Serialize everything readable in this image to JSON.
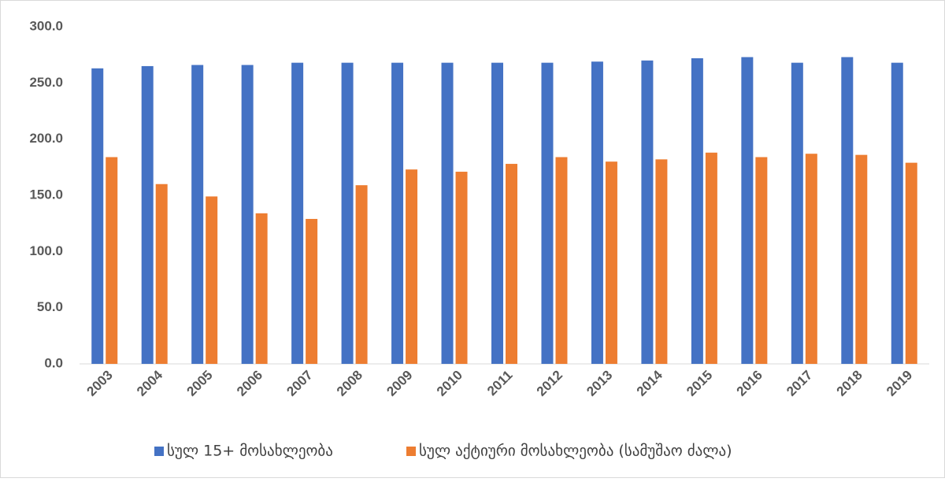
{
  "chart_data": {
    "type": "bar",
    "categories": [
      "2003",
      "2004",
      "2005",
      "2006",
      "2007",
      "2008",
      "2009",
      "2010",
      "2011",
      "2012",
      "2013",
      "2014",
      "2015",
      "2016",
      "2017",
      "2018",
      "2019"
    ],
    "series": [
      {
        "name": "სულ 15+ მოსახლეობა",
        "color": "#4472c4",
        "values": [
          263,
          265,
          266,
          266,
          268,
          268,
          268,
          268,
          268,
          268,
          269,
          270,
          272,
          273,
          268,
          273,
          268
        ]
      },
      {
        "name": "სულ აქტიური მოსახლეობა (სამუშაო ძალა)",
        "color": "#ed7d31",
        "values": [
          184,
          160,
          149,
          134,
          129,
          159,
          173,
          171,
          178,
          184,
          180,
          182,
          188,
          184,
          187,
          186,
          179
        ]
      }
    ],
    "ylim": [
      0,
      300
    ],
    "yticks": [
      {
        "value": 0,
        "label": "0.0"
      },
      {
        "value": 50,
        "label": "50.0"
      },
      {
        "value": 100,
        "label": "100.0"
      },
      {
        "value": 150,
        "label": "150.0"
      },
      {
        "value": 200,
        "label": "200.0"
      },
      {
        "value": 250,
        "label": "250.0"
      },
      {
        "value": 300,
        "label": "300.0"
      }
    ],
    "grid": false,
    "legend": "bottom"
  }
}
